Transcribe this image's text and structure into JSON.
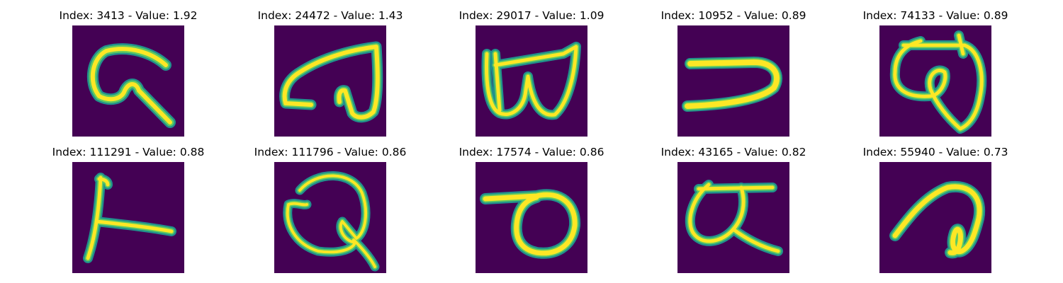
{
  "labels": {
    "index_prefix": "Index:",
    "value_prefix": "Value:",
    "separator": "-"
  },
  "colors": {
    "background": "#ffffff",
    "image_background": "#440154",
    "stroke_outer": "#21918c",
    "stroke_middle": "#5ec962",
    "stroke_core": "#fde725"
  },
  "colormap": "viridis",
  "panels": [
    {
      "index": "3413",
      "value": "1.92"
    },
    {
      "index": "24472",
      "value": "1.43"
    },
    {
      "index": "29017",
      "value": "1.09"
    },
    {
      "index": "10952",
      "value": "0.89"
    },
    {
      "index": "74133",
      "value": "0.89"
    },
    {
      "index": "111291",
      "value": "0.88"
    },
    {
      "index": "111796",
      "value": "0.86"
    },
    {
      "index": "17574",
      "value": "0.86"
    },
    {
      "index": "43165",
      "value": "0.82"
    },
    {
      "index": "55940",
      "value": "0.73"
    }
  ]
}
